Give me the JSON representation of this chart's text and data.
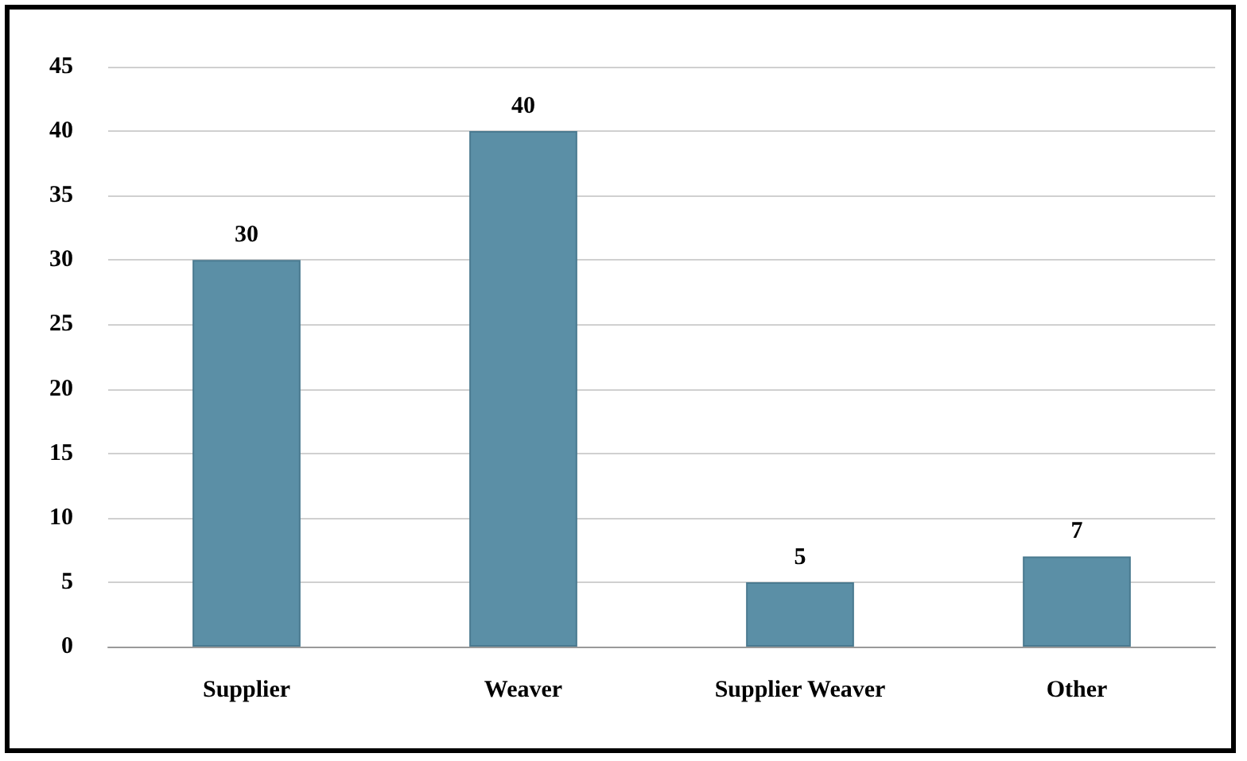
{
  "chart_data": {
    "type": "bar",
    "categories": [
      "Supplier",
      "Weaver",
      "Supplier Weaver",
      "Other"
    ],
    "values": [
      30,
      40,
      5,
      7
    ],
    "color": "#5b8fa6",
    "ylim": [
      0,
      45
    ],
    "yticks": [
      0,
      5,
      10,
      15,
      20,
      25,
      30,
      35,
      40,
      45
    ],
    "grid": "y",
    "data_labels": true
  }
}
